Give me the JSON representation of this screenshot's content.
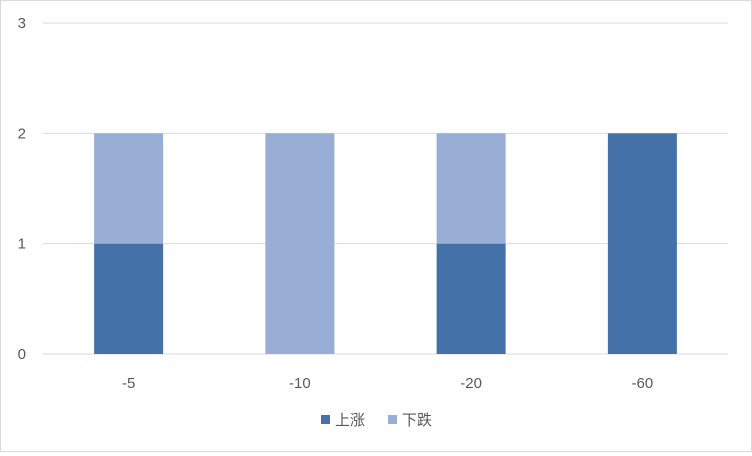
{
  "colors": {
    "up": "#4472A8",
    "down": "#98AED4",
    "grid": "#d9d9d9",
    "text": "#595959"
  },
  "chart_data": {
    "type": "bar",
    "stacked": true,
    "categories": [
      "-5",
      "-10",
      "-20",
      "-60"
    ],
    "series": [
      {
        "name": "上涨",
        "values": [
          1,
          0,
          1,
          2
        ]
      },
      {
        "name": "下跌",
        "values": [
          1,
          2,
          1,
          0
        ]
      }
    ],
    "ylim": [
      0,
      3
    ],
    "yticks": [
      "0",
      "1",
      "2",
      "3"
    ],
    "grid": true,
    "legend": "bottom"
  }
}
